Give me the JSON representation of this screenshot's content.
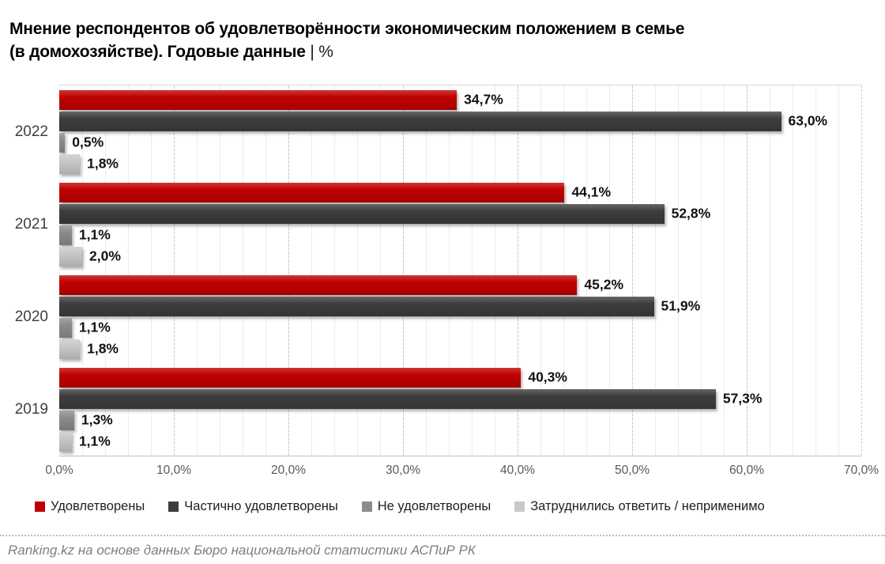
{
  "title": {
    "line1": "Мнение респондентов об удовлетворённости экономическим положением в семье",
    "line2": "(в домохозяйстве). Годовые данные",
    "unit": "| %"
  },
  "chart_data": {
    "type": "bar",
    "orientation": "horizontal",
    "categories": [
      "2022",
      "2021",
      "2020",
      "2019"
    ],
    "series": [
      {
        "name": "Удовлетворены",
        "color": "#c00000",
        "values": [
          34.7,
          44.1,
          45.2,
          40.3
        ],
        "labels": [
          "34,7%",
          "44,1%",
          "45,2%",
          "40,3%"
        ]
      },
      {
        "name": "Частично удовлетворены",
        "color": "#3d3d3d",
        "values": [
          63.0,
          52.8,
          51.9,
          57.3
        ],
        "labels": [
          "63,0%",
          "52,8%",
          "51,9%",
          "57,3%"
        ]
      },
      {
        "name": "Не удовлетворены",
        "color": "#8c8c8c",
        "values": [
          0.5,
          1.1,
          1.1,
          1.3
        ],
        "labels": [
          "0,5%",
          "1,1%",
          "1,1%",
          "1,3%"
        ]
      },
      {
        "name": "Затруднились ответить / неприменимо",
        "color": "#c8c8c8",
        "values": [
          1.8,
          2.0,
          1.8,
          1.1
        ],
        "labels": [
          "1,8%",
          "2,0%",
          "1,8%",
          "1,1%"
        ]
      }
    ],
    "x_axis": {
      "min": 0,
      "max": 70,
      "tick_values": [
        0,
        10,
        20,
        30,
        40,
        50,
        60,
        70
      ],
      "ticks": [
        "0,0%",
        "10,0%",
        "20,0%",
        "30,0%",
        "40,0%",
        "50,0%",
        "60,0%",
        "70,0%"
      ]
    },
    "legend_position": "bottom",
    "grid": true
  },
  "footer": {
    "source": "Ranking.kz на основе данных Бюро национальной статистики АСПиР РК"
  }
}
